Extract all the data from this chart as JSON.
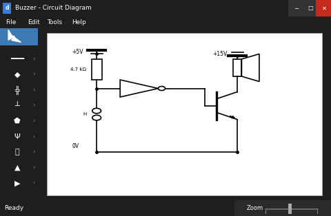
{
  "title": "Buzzer - Circuit Diagram",
  "menu_items": [
    "File",
    "Edit",
    "Tools",
    "Help"
  ],
  "titlebar_bg": "#1e1e1e",
  "menubar_bg": "#2d2d2d",
  "toolbar_bg": "#333333",
  "toolbar_selected_bg": "#3d7ab5",
  "canvas_outer_bg": "#c8c8c8",
  "canvas_inner_bg": "#ffffff",
  "statusbar_bg": "#0078d7",
  "status_text": "Ready",
  "status_text_color": "#ffffff",
  "title_text_color": "#ffffff",
  "menu_text_color": "#ffffff",
  "zoom_label": "Zoom",
  "circuit": {
    "v5_label": "+5V",
    "v15_label": "+15V",
    "r_label": "4.7 kΩ",
    "gnd_label": "0V",
    "line_color": "#000000",
    "line_width": 1.2
  }
}
